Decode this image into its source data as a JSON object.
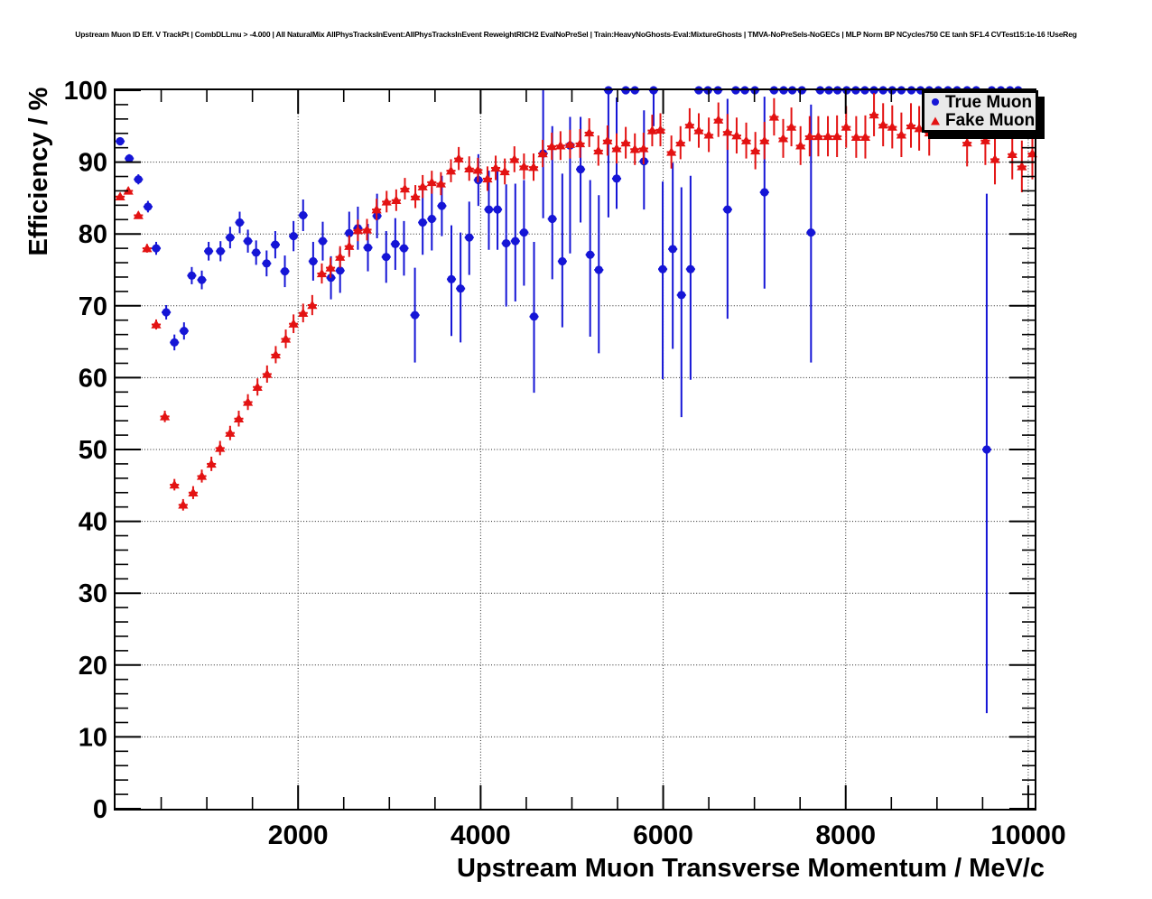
{
  "header": {
    "title": "Upstream Muon ID Eff. V TrackPt | CombDLLmu > -4.000 | All NaturalMix AllPhysTracksInEvent:AllPhysTracksInEvent ReweightRICH2 EvalNoPreSel | Train:HeavyNoGhosts-Eval:MixtureGhosts | TMVA-NoPreSels-NoGECs | MLP Norm BP NCycles750 CE tanh SF1.4 CVTest15:1e-16 !UseReg"
  },
  "chart_data": {
    "type": "scatter",
    "title": "Upstream Muon ID Eff. V TrackPt",
    "xlabel": "Upstream Muon Transverse Momentum / MeV/c",
    "ylabel": "Efficiency / %",
    "xlim": [
      0,
      10070
    ],
    "ylim": [
      0,
      100
    ],
    "x_major_ticks": [
      2000,
      4000,
      6000,
      8000,
      10000
    ],
    "x_minor_step": 500,
    "y_major_ticks": [
      0,
      10,
      20,
      30,
      40,
      50,
      60,
      70,
      80,
      90,
      100
    ],
    "y_minor_step": 2,
    "grid": "dotted-at-major-ticks",
    "x_bin_half_width": 50,
    "legend": {
      "position": "top-right",
      "entries": [
        {
          "label": "True Muon",
          "marker": "circle",
          "color": "#1515d6"
        },
        {
          "label": "Fake Muon",
          "marker": "triangle-up",
          "color": "#e31212"
        }
      ]
    },
    "series": [
      {
        "name": "True Muon",
        "slug": "true-muon",
        "marker": "circle",
        "color": "#1515d6",
        "points": [
          [
            50,
            92.9,
            0.5,
            0.5
          ],
          [
            150,
            90.5,
            0.6,
            0.6
          ],
          [
            250,
            87.6,
            0.7,
            0.7
          ],
          [
            355,
            83.8,
            0.8,
            0.8
          ],
          [
            445,
            78.0,
            0.9,
            0.9
          ],
          [
            555,
            69.1,
            1.0,
            1.0
          ],
          [
            645,
            64.9,
            1.1,
            1.1
          ],
          [
            750,
            66.5,
            1.2,
            1.2
          ],
          [
            835,
            74.2,
            1.2,
            1.2
          ],
          [
            945,
            73.6,
            1.3,
            1.3
          ],
          [
            1020,
            77.6,
            1.3,
            1.3
          ],
          [
            1150,
            77.6,
            1.4,
            1.4
          ],
          [
            1255,
            79.5,
            1.5,
            1.5
          ],
          [
            1360,
            81.6,
            1.5,
            1.5
          ],
          [
            1450,
            79.0,
            1.6,
            1.6
          ],
          [
            1540,
            77.4,
            1.7,
            1.7
          ],
          [
            1655,
            75.9,
            1.8,
            1.8
          ],
          [
            1750,
            78.5,
            1.9,
            1.9
          ],
          [
            1855,
            74.8,
            2.2,
            2.2
          ],
          [
            1950,
            79.7,
            2.1,
            2.1
          ],
          [
            2055,
            82.6,
            2.2,
            2.2
          ],
          [
            2165,
            76.2,
            2.7,
            2.7
          ],
          [
            2270,
            79.0,
            2.7,
            2.7
          ],
          [
            2360,
            73.9,
            3.0,
            3.0
          ],
          [
            2460,
            74.9,
            3.1,
            3.1
          ],
          [
            2560,
            80.1,
            3.0,
            3.0
          ],
          [
            2655,
            80.8,
            3.0,
            3.0
          ],
          [
            2765,
            78.1,
            3.3,
            3.3
          ],
          [
            2865,
            82.5,
            3.1,
            3.1
          ],
          [
            2965,
            76.8,
            3.6,
            3.6
          ],
          [
            3065,
            78.6,
            3.6,
            3.6
          ],
          [
            3160,
            78.0,
            3.8,
            3.8
          ],
          [
            3280,
            68.7,
            6.6,
            6.6
          ],
          [
            3365,
            81.6,
            4.5,
            4.5
          ],
          [
            3465,
            82.1,
            4.4,
            4.4
          ],
          [
            3575,
            83.9,
            4.2,
            4.2
          ],
          [
            3680,
            73.7,
            7.9,
            7.5
          ],
          [
            3780,
            72.4,
            7.5,
            7.8
          ],
          [
            3875,
            79.5,
            5.2,
            5.0
          ],
          [
            3975,
            87.5,
            3.6,
            3.6
          ],
          [
            4090,
            83.4,
            5.6,
            5.4
          ],
          [
            4185,
            83.4,
            5.6,
            5.4
          ],
          [
            4280,
            78.7,
            8.8,
            8.2
          ],
          [
            4380,
            79.0,
            8.4,
            8.0
          ],
          [
            4475,
            80.2,
            7.4,
            7.3
          ],
          [
            4585,
            68.5,
            10.6,
            10.4
          ],
          [
            4685,
            91.2,
            9.0,
            8.8
          ],
          [
            4785,
            82.1,
            8.4,
            12.9
          ],
          [
            4895,
            76.2,
            9.2,
            12.2
          ],
          [
            4980,
            92.3,
            15.0,
            4.0
          ],
          [
            5095,
            89.0,
            7.4,
            7.3
          ],
          [
            5200,
            77.1,
            11.4,
            10.4
          ],
          [
            5295,
            75.0,
            11.6,
            10.4
          ],
          [
            5400,
            100,
            17.7,
            0
          ],
          [
            5490,
            87.7,
            4.2,
            11.3
          ],
          [
            5590,
            100,
            0,
            0
          ],
          [
            5690,
            100,
            0,
            0
          ],
          [
            5790,
            90.1,
            6.7,
            7.1
          ],
          [
            5895,
            100,
            5.0,
            0
          ],
          [
            5995,
            75.1,
            15.3,
            12.2
          ],
          [
            6105,
            77.9,
            13.9,
            12.0
          ],
          [
            6200,
            71.5,
            17.0,
            15.0
          ],
          [
            6300,
            75.1,
            15.4,
            13.0
          ],
          [
            6390,
            100,
            0,
            0
          ],
          [
            6490,
            100,
            0,
            0
          ],
          [
            6600,
            100,
            0,
            0
          ],
          [
            6705,
            83.4,
            15.2,
            15.4
          ],
          [
            6795,
            100,
            0,
            0
          ],
          [
            6895,
            100,
            0,
            0
          ],
          [
            7005,
            100,
            0,
            0
          ],
          [
            7110,
            85.8,
            13.4,
            13.3
          ],
          [
            7215,
            100,
            0,
            0
          ],
          [
            7320,
            100,
            0,
            0
          ],
          [
            7415,
            100,
            0,
            0
          ],
          [
            7520,
            100,
            0,
            0
          ],
          [
            7620,
            80.2,
            18.1,
            17.8
          ],
          [
            7720,
            100,
            0,
            0
          ],
          [
            7815,
            100,
            0,
            0
          ],
          [
            7910,
            100,
            0,
            0
          ],
          [
            8010,
            100,
            0,
            0
          ],
          [
            8110,
            100,
            0,
            0
          ],
          [
            8210,
            100,
            0,
            0
          ],
          [
            8310,
            100,
            0,
            0
          ],
          [
            8410,
            100,
            0,
            0
          ],
          [
            8510,
            100,
            0,
            0
          ],
          [
            8610,
            100,
            0,
            0
          ],
          [
            8720,
            100,
            0,
            0
          ],
          [
            8820,
            100,
            0,
            0
          ],
          [
            8915,
            100,
            0,
            0
          ],
          [
            9015,
            100,
            0,
            0
          ],
          [
            9120,
            100,
            0,
            0
          ],
          [
            9220,
            100,
            0,
            0
          ],
          [
            9330,
            100,
            0,
            0
          ],
          [
            9430,
            100,
            0,
            0
          ],
          [
            9545,
            50.0,
            36.7,
            35.6
          ],
          [
            9600,
            100,
            0,
            0
          ],
          [
            9700,
            100,
            0,
            0
          ],
          [
            9800,
            100,
            0,
            0
          ],
          [
            9890,
            100,
            0,
            0
          ]
        ]
      },
      {
        "name": "Fake Muon",
        "slug": "fake-muon",
        "marker": "triangle-up",
        "color": "#e31212",
        "points": [
          [
            50,
            85.2,
            0.5,
            0.5
          ],
          [
            140,
            86.0,
            0.5,
            0.5
          ],
          [
            250,
            82.6,
            0.5,
            0.5
          ],
          [
            345,
            78.0,
            0.6,
            0.6
          ],
          [
            445,
            67.4,
            0.7,
            0.7
          ],
          [
            540,
            54.6,
            0.8,
            0.8
          ],
          [
            645,
            45.1,
            0.8,
            0.8
          ],
          [
            740,
            42.3,
            0.8,
            0.8
          ],
          [
            850,
            44.0,
            0.9,
            0.9
          ],
          [
            945,
            46.3,
            0.9,
            0.9
          ],
          [
            1050,
            48.0,
            1.0,
            1.0
          ],
          [
            1145,
            50.2,
            1.0,
            1.0
          ],
          [
            1255,
            52.3,
            1.0,
            1.0
          ],
          [
            1350,
            54.3,
            1.1,
            1.1
          ],
          [
            1450,
            56.6,
            1.1,
            1.1
          ],
          [
            1555,
            58.7,
            1.2,
            1.2
          ],
          [
            1660,
            60.5,
            1.2,
            1.2
          ],
          [
            1755,
            63.2,
            1.2,
            1.2
          ],
          [
            1865,
            65.4,
            1.3,
            1.3
          ],
          [
            1950,
            67.5,
            1.3,
            1.3
          ],
          [
            2055,
            69.0,
            1.3,
            1.3
          ],
          [
            2155,
            70.1,
            1.4,
            1.4
          ],
          [
            2260,
            74.5,
            1.4,
            1.4
          ],
          [
            2355,
            75.3,
            1.4,
            1.4
          ],
          [
            2460,
            76.8,
            1.5,
            1.5
          ],
          [
            2560,
            78.3,
            1.5,
            1.5
          ],
          [
            2655,
            80.5,
            1.5,
            1.5
          ],
          [
            2755,
            80.6,
            1.5,
            1.5
          ],
          [
            2860,
            83.4,
            1.5,
            1.5
          ],
          [
            2970,
            84.5,
            1.5,
            1.5
          ],
          [
            3075,
            84.7,
            1.5,
            1.5
          ],
          [
            3170,
            86.3,
            1.5,
            1.5
          ],
          [
            3285,
            85.2,
            1.6,
            1.6
          ],
          [
            3365,
            86.6,
            1.6,
            1.6
          ],
          [
            3465,
            87.2,
            1.6,
            1.6
          ],
          [
            3565,
            87.0,
            1.6,
            1.6
          ],
          [
            3675,
            88.8,
            1.6,
            1.6
          ],
          [
            3760,
            90.5,
            1.6,
            1.6
          ],
          [
            3875,
            89.1,
            1.7,
            1.7
          ],
          [
            3970,
            88.9,
            1.7,
            1.7
          ],
          [
            4075,
            87.7,
            1.7,
            1.7
          ],
          [
            4165,
            89.2,
            1.7,
            1.7
          ],
          [
            4265,
            88.7,
            1.8,
            1.8
          ],
          [
            4370,
            90.4,
            1.8,
            1.8
          ],
          [
            4475,
            89.4,
            1.8,
            1.8
          ],
          [
            4580,
            89.3,
            1.9,
            1.9
          ],
          [
            4680,
            91.2,
            1.9,
            1.9
          ],
          [
            4780,
            92.2,
            1.9,
            1.9
          ],
          [
            4875,
            92.3,
            2.0,
            2.0
          ],
          [
            4980,
            92.5,
            2.0,
            2.0
          ],
          [
            5090,
            92.6,
            2.0,
            2.0
          ],
          [
            5190,
            94.1,
            2.0,
            2.0
          ],
          [
            5290,
            91.6,
            2.1,
            2.1
          ],
          [
            5390,
            93.0,
            2.1,
            2.1
          ],
          [
            5490,
            91.9,
            2.1,
            2.1
          ],
          [
            5590,
            92.7,
            2.2,
            2.2
          ],
          [
            5690,
            91.8,
            2.2,
            2.2
          ],
          [
            5785,
            91.9,
            2.2,
            2.2
          ],
          [
            5880,
            94.4,
            2.2,
            2.2
          ],
          [
            5970,
            94.5,
            2.3,
            2.3
          ],
          [
            6090,
            91.4,
            2.3,
            2.3
          ],
          [
            6190,
            92.7,
            2.3,
            2.3
          ],
          [
            6290,
            95.2,
            2.3,
            2.3
          ],
          [
            6390,
            94.4,
            2.4,
            2.4
          ],
          [
            6500,
            93.8,
            2.4,
            2.4
          ],
          [
            6605,
            95.9,
            2.4,
            2.4
          ],
          [
            6705,
            94.2,
            2.5,
            2.5
          ],
          [
            6805,
            93.7,
            2.5,
            2.5
          ],
          [
            6910,
            93.0,
            2.5,
            2.5
          ],
          [
            7010,
            91.6,
            2.6,
            2.6
          ],
          [
            7110,
            93.0,
            2.6,
            2.6
          ],
          [
            7215,
            96.3,
            2.6,
            2.6
          ],
          [
            7315,
            93.3,
            2.7,
            2.7
          ],
          [
            7405,
            94.9,
            2.7,
            2.7
          ],
          [
            7505,
            92.3,
            2.7,
            2.7
          ],
          [
            7605,
            93.6,
            2.8,
            2.8
          ],
          [
            7700,
            93.6,
            2.8,
            2.8
          ],
          [
            7805,
            93.6,
            2.8,
            2.8
          ],
          [
            7905,
            93.6,
            2.9,
            2.9
          ],
          [
            8005,
            94.9,
            2.9,
            2.9
          ],
          [
            8115,
            93.5,
            2.9,
            2.9
          ],
          [
            8215,
            93.5,
            3.0,
            3.0
          ],
          [
            8310,
            96.6,
            3.0,
            3.0
          ],
          [
            8410,
            95.2,
            3.0,
            3.0
          ],
          [
            8510,
            94.9,
            3.0,
            3.0
          ],
          [
            8610,
            93.8,
            3.1,
            3.1
          ],
          [
            8715,
            95.1,
            3.1,
            3.1
          ],
          [
            8805,
            94.7,
            3.1,
            3.1
          ],
          [
            8915,
            94.1,
            3.2,
            3.2
          ],
          [
            9330,
            92.7,
            3.3,
            3.3
          ],
          [
            9530,
            93.0,
            3.4,
            3.4
          ],
          [
            9635,
            90.4,
            3.5,
            3.5
          ],
          [
            9825,
            91.1,
            3.5,
            3.5
          ],
          [
            9930,
            89.4,
            3.6,
            3.6
          ],
          [
            10045,
            91.2,
            3.6,
            3.6
          ]
        ]
      }
    ]
  }
}
